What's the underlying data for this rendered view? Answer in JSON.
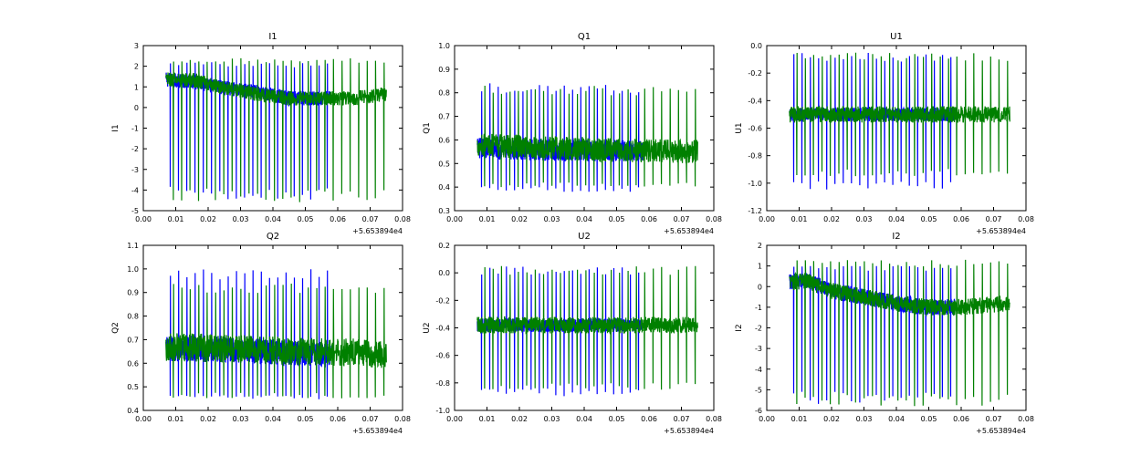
{
  "chart_data": {
    "type": "line",
    "x_offset_label": "+5.653894e4",
    "colors": {
      "series_1": "#0000ff",
      "series_2": "#008000"
    },
    "panels": [
      {
        "title": "I1",
        "xlabel": "",
        "ylabel": "I1",
        "xlim": [
          0.0,
          0.08
        ],
        "ylim": [
          -5,
          3
        ],
        "xticks": [
          "0.00",
          "0.01",
          "0.02",
          "0.03",
          "0.04",
          "0.05",
          "0.06",
          "0.07",
          "0.08"
        ],
        "yticks": [
          "-5",
          "-4",
          "-3",
          "-2",
          "-1",
          "0",
          "1",
          "2",
          "3"
        ],
        "series": [
          {
            "name": "series_1",
            "color": "#0000ff",
            "x_range": [
              0.007,
              0.058
            ],
            "spike_interval": 0.00255,
            "baseline": [
              [
                0.007,
                1.2
              ],
              [
                0.015,
                1.1
              ],
              [
                0.025,
                0.8
              ],
              [
                0.035,
                0.6
              ],
              [
                0.045,
                0.3
              ],
              [
                0.055,
                0.3
              ],
              [
                0.058,
                0.4
              ]
            ],
            "band_low": -0.2,
            "band_high": 0.5,
            "spike_min": -4.5,
            "spike_max": 2.2
          },
          {
            "name": "series_2",
            "color": "#008000",
            "x_range": [
              0.007,
              0.075
            ],
            "spike_interval": 0.0026,
            "baseline": [
              [
                0.007,
                1.2
              ],
              [
                0.015,
                1.2
              ],
              [
                0.025,
                0.8
              ],
              [
                0.035,
                0.5
              ],
              [
                0.045,
                0.3
              ],
              [
                0.055,
                0.3
              ],
              [
                0.065,
                0.3
              ],
              [
                0.075,
                0.5
              ]
            ],
            "band_low": -0.2,
            "band_high": 0.5,
            "spike_min": -4.6,
            "spike_max": 2.4
          }
        ]
      },
      {
        "title": "Q1",
        "xlabel": "",
        "ylabel": "Q1",
        "xlim": [
          0.0,
          0.08
        ],
        "ylim": [
          0.3,
          1.0
        ],
        "xticks": [
          "0.00",
          "0.01",
          "0.02",
          "0.03",
          "0.04",
          "0.05",
          "0.06",
          "0.07",
          "0.08"
        ],
        "yticks": [
          "0.3",
          "0.4",
          "0.5",
          "0.6",
          "0.7",
          "0.8",
          "0.9",
          "1.0"
        ],
        "series": [
          {
            "name": "series_1",
            "color": "#0000ff",
            "x_range": [
              0.007,
              0.058
            ],
            "spike_interval": 0.00255,
            "baseline": [
              [
                0.007,
                0.56
              ],
              [
                0.03,
                0.55
              ],
              [
                0.058,
                0.55
              ]
            ],
            "band_low": -0.04,
            "band_high": 0.05,
            "spike_min": 0.38,
            "spike_max": 0.84
          },
          {
            "name": "series_2",
            "color": "#008000",
            "x_range": [
              0.007,
              0.075
            ],
            "spike_interval": 0.0026,
            "baseline": [
              [
                0.007,
                0.58
              ],
              [
                0.04,
                0.56
              ],
              [
                0.075,
                0.55
              ]
            ],
            "band_low": -0.05,
            "band_high": 0.05,
            "spike_min": 0.4,
            "spike_max": 0.83
          }
        ]
      },
      {
        "title": "U1",
        "xlabel": "",
        "ylabel": "U1",
        "xlim": [
          0.0,
          0.08
        ],
        "ylim": [
          -1.2,
          0.0
        ],
        "xticks": [
          "0.00",
          "0.01",
          "0.02",
          "0.03",
          "0.04",
          "0.05",
          "0.06",
          "0.07",
          "0.08"
        ],
        "yticks": [
          "-1.2",
          "-1.0",
          "-0.8",
          "-0.6",
          "-0.4",
          "-0.2",
          "0.0"
        ],
        "series": [
          {
            "name": "series_1",
            "color": "#0000ff",
            "x_range": [
              0.007,
              0.058
            ],
            "spike_interval": 0.00255,
            "baseline": [
              [
                0.007,
                -0.5
              ],
              [
                0.058,
                -0.5
              ]
            ],
            "band_low": -0.05,
            "band_high": 0.05,
            "spike_min": -1.05,
            "spike_max": -0.05
          },
          {
            "name": "series_2",
            "color": "#008000",
            "x_range": [
              0.007,
              0.075
            ],
            "spike_interval": 0.0026,
            "baseline": [
              [
                0.007,
                -0.5
              ],
              [
                0.075,
                -0.5
              ]
            ],
            "band_low": -0.06,
            "band_high": 0.06,
            "spike_min": -0.95,
            "spike_max": -0.05
          }
        ]
      },
      {
        "title": "Q2",
        "xlabel": "",
        "ylabel": "Q2",
        "xlim": [
          0.0,
          0.08
        ],
        "ylim": [
          0.4,
          1.1
        ],
        "xticks": [
          "0.00",
          "0.01",
          "0.02",
          "0.03",
          "0.04",
          "0.05",
          "0.06",
          "0.07",
          "0.08"
        ],
        "yticks": [
          "0.4",
          "0.5",
          "0.6",
          "0.7",
          "0.8",
          "0.9",
          "1.0",
          "1.1"
        ],
        "series": [
          {
            "name": "series_1",
            "color": "#0000ff",
            "x_range": [
              0.007,
              0.058
            ],
            "spike_interval": 0.00255,
            "baseline": [
              [
                0.007,
                0.66
              ],
              [
                0.03,
                0.65
              ],
              [
                0.058,
                0.63
              ]
            ],
            "band_low": -0.05,
            "band_high": 0.06,
            "spike_min": 0.44,
            "spike_max": 1.0
          },
          {
            "name": "series_2",
            "color": "#008000",
            "x_range": [
              0.007,
              0.075
            ],
            "spike_interval": 0.0026,
            "baseline": [
              [
                0.007,
                0.67
              ],
              [
                0.03,
                0.66
              ],
              [
                0.075,
                0.64
              ]
            ],
            "band_low": -0.06,
            "band_high": 0.06,
            "spike_min": 0.45,
            "spike_max": 0.94
          }
        ]
      },
      {
        "title": "U2",
        "xlabel": "",
        "ylabel": "U2",
        "xlim": [
          0.0,
          0.08
        ],
        "ylim": [
          -1.0,
          0.2
        ],
        "xticks": [
          "0.00",
          "0.01",
          "0.02",
          "0.03",
          "0.04",
          "0.05",
          "0.06",
          "0.07",
          "0.08"
        ],
        "yticks": [
          "-1.0",
          "-0.8",
          "-0.6",
          "-0.4",
          "-0.2",
          "0.0",
          "0.2"
        ],
        "series": [
          {
            "name": "series_1",
            "color": "#0000ff",
            "x_range": [
              0.007,
              0.058
            ],
            "spike_interval": 0.00255,
            "baseline": [
              [
                0.007,
                -0.38
              ],
              [
                0.058,
                -0.38
              ]
            ],
            "band_low": -0.05,
            "band_high": 0.05,
            "spike_min": -0.9,
            "spike_max": 0.05
          },
          {
            "name": "series_2",
            "color": "#008000",
            "x_range": [
              0.007,
              0.075
            ],
            "spike_interval": 0.0026,
            "baseline": [
              [
                0.007,
                -0.38
              ],
              [
                0.075,
                -0.38
              ]
            ],
            "band_low": -0.06,
            "band_high": 0.06,
            "spike_min": -0.85,
            "spike_max": 0.05
          }
        ]
      },
      {
        "title": "I2",
        "xlabel": "",
        "ylabel": "I2",
        "xlim": [
          0.0,
          0.08
        ],
        "ylim": [
          -6,
          2
        ],
        "xticks": [
          "0.00",
          "0.01",
          "0.02",
          "0.03",
          "0.04",
          "0.05",
          "0.06",
          "0.07",
          "0.08"
        ],
        "yticks": [
          "-6",
          "-5",
          "-4",
          "-3",
          "-2",
          "-1",
          "0",
          "1",
          "2"
        ],
        "series": [
          {
            "name": "series_1",
            "color": "#0000ff",
            "x_range": [
              0.007,
              0.058
            ],
            "spike_interval": 0.00255,
            "baseline": [
              [
                0.007,
                0.2
              ],
              [
                0.012,
                0.3
              ],
              [
                0.02,
                -0.2
              ],
              [
                0.03,
                -0.5
              ],
              [
                0.04,
                -0.8
              ],
              [
                0.05,
                -1.0
              ],
              [
                0.058,
                -1.0
              ]
            ],
            "band_low": -0.4,
            "band_high": 0.4,
            "spike_min": -5.7,
            "spike_max": 1.0
          },
          {
            "name": "series_2",
            "color": "#008000",
            "x_range": [
              0.007,
              0.075
            ],
            "spike_interval": 0.0026,
            "baseline": [
              [
                0.007,
                0.2
              ],
              [
                0.012,
                0.3
              ],
              [
                0.02,
                -0.2
              ],
              [
                0.03,
                -0.5
              ],
              [
                0.04,
                -0.8
              ],
              [
                0.05,
                -1.0
              ],
              [
                0.06,
                -1.0
              ],
              [
                0.075,
                -0.8
              ]
            ],
            "band_low": -0.4,
            "band_high": 0.4,
            "spike_min": -5.8,
            "spike_max": 1.3
          }
        ]
      }
    ]
  }
}
